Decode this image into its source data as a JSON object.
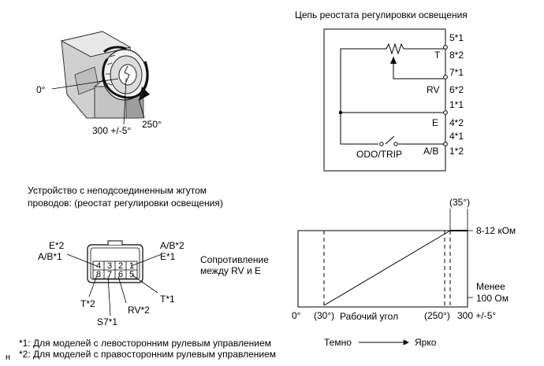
{
  "switch_photo": {
    "angle_0": "0°",
    "angle_250": "250°",
    "angle_total": "300 +/-5°"
  },
  "circuit": {
    "title": "Цепь реостата регулировки освещения",
    "terminals": [
      "T",
      "RV",
      "E",
      "A/B"
    ],
    "pins": [
      {
        "top": "5*1",
        "bottom": "8*2"
      },
      {
        "top": "7*1",
        "bottom": "6*2"
      },
      {
        "top": "1*1",
        "bottom": "4*2"
      },
      {
        "top": "4*1",
        "bottom": "1*2"
      }
    ],
    "switch_label": "ODO/TRIP"
  },
  "connector": {
    "caption_line1": "Устройство с неподсоединенным жгутом",
    "caption_line2": "проводов: (реостат регулировки освещения)",
    "top_row": [
      "4",
      "3",
      "2",
      "1"
    ],
    "bottom_row": [
      "8",
      "7",
      "6",
      "5"
    ],
    "labels": {
      "e2": "E*2",
      "ab1": "A/B*1",
      "ab2": "A/B*2",
      "e1": "E*1",
      "t1": "T*1",
      "t2": "T*2",
      "rv2": "RV*2",
      "s71": "S7*1"
    }
  },
  "resistance_label_line1": "Сопротивление",
  "resistance_label_line2": "между RV и E",
  "graph": {
    "top_value": "8-12 кОм",
    "low_value_line1": "Менее",
    "low_value_line2": "100 Ом",
    "angle_35": "(35°)",
    "x_0": "0°",
    "x_30": "(30°)",
    "x_working": "Рабочий угол",
    "x_250": "(250°)",
    "x_300": "300 +/-5°",
    "dark": "Темно",
    "bright": "Ярко"
  },
  "notes": {
    "note1": "*1: Для моделей с левосторонним рулевым управлением",
    "note2": "*2: Для моделей с правосторонним рулевым управлением",
    "corner_mark": "н"
  }
}
